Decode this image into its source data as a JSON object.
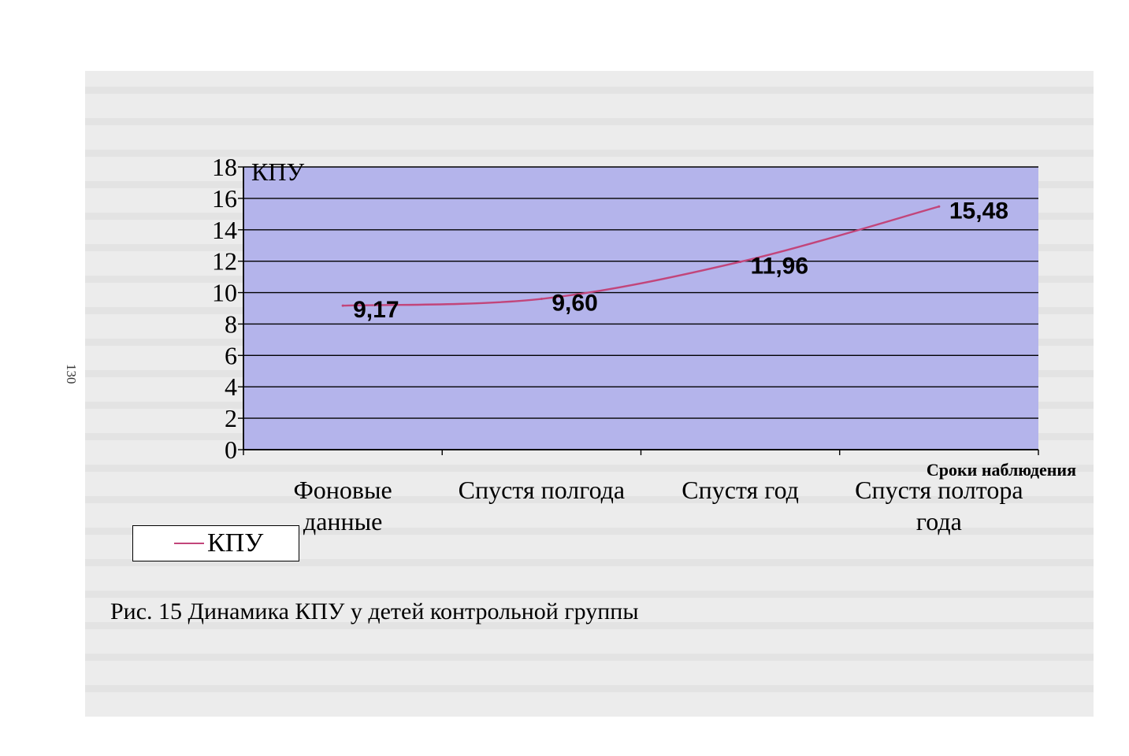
{
  "page_number": "130",
  "caption": "Рис. 15 Динамика КПУ у детей контрольной группы",
  "legend": {
    "label": "КПУ"
  },
  "colors": {
    "plot_background": "#b4b4eb",
    "line": "#c2457a",
    "gridline": "#000000"
  },
  "chart_data": {
    "type": "line",
    "ylabel": "КПУ",
    "xlabel": "Сроки наблюдения",
    "ylim": [
      0,
      18
    ],
    "yticks": [
      "0",
      "2",
      "4",
      "6",
      "8",
      "10",
      "12",
      "14",
      "16",
      "18"
    ],
    "categories": [
      [
        "Фоновые",
        "данные"
      ],
      [
        "Спустя полгода"
      ],
      [
        "Спустя год"
      ],
      [
        "Спустя полтора",
        "года"
      ]
    ],
    "series": [
      {
        "name": "КПУ",
        "values": [
          9.17,
          9.6,
          11.96,
          15.48
        ],
        "labels": [
          "9,17",
          "9,60",
          "11,96",
          "15,48"
        ]
      }
    ],
    "grid": true,
    "legend_position": "bottom-left"
  }
}
